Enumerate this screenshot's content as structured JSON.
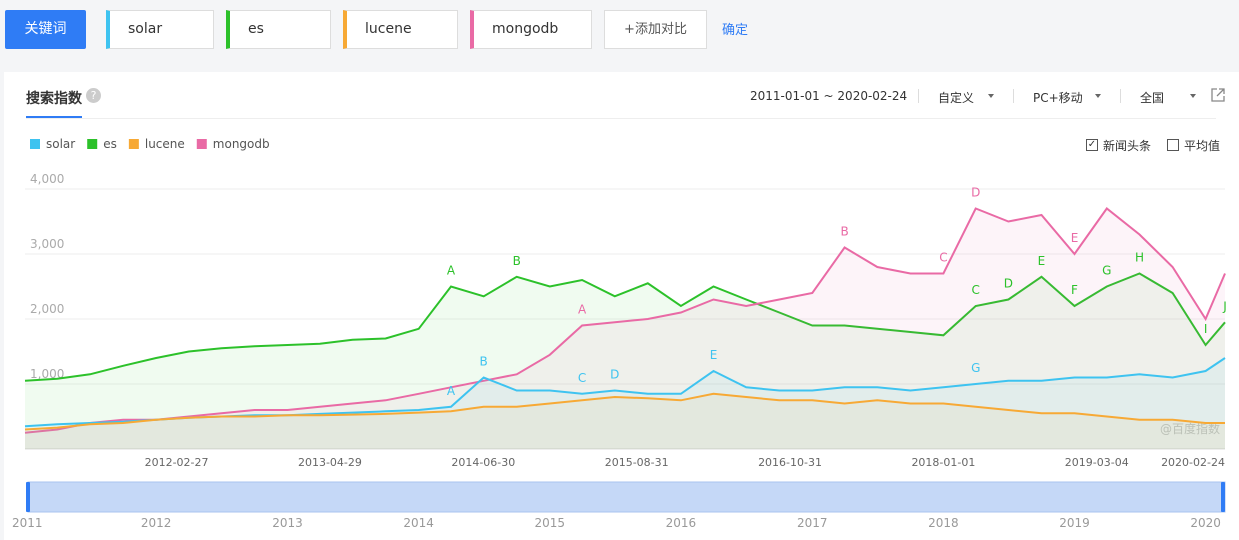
{
  "keywords_bar": {
    "button": "关键词",
    "keywords": [
      {
        "text": "solar",
        "color": "#3ec3f0"
      },
      {
        "text": "es",
        "color": "#2cc12a"
      },
      {
        "text": "lucene",
        "color": "#f7a935"
      },
      {
        "text": "mongodb",
        "color": "#e96aa5"
      }
    ],
    "add": "+添加对比",
    "confirm": "确定"
  },
  "panel": {
    "tab": "搜索指数",
    "help": "?",
    "date_range": "2011-01-01 ~ 2020-02-24",
    "dropdowns": [
      "自定义",
      "PC+移动",
      "全国"
    ],
    "checkboxes": [
      {
        "label": "新闻头条",
        "checked": true
      },
      {
        "label": "平均值",
        "checked": false
      }
    ],
    "watermark": "@百度指数"
  },
  "chart_data": {
    "type": "line",
    "area": true,
    "grid": true,
    "x": [
      "2011-01-01",
      "2011-04-01",
      "2011-07-01",
      "2011-10-01",
      "2012-01-01",
      "2012-04-01",
      "2012-07-01",
      "2012-10-01",
      "2013-01-01",
      "2013-04-01",
      "2013-07-01",
      "2013-10-01",
      "2014-01-01",
      "2014-04-01",
      "2014-07-01",
      "2014-10-01",
      "2015-01-01",
      "2015-04-01",
      "2015-07-01",
      "2015-10-01",
      "2016-01-01",
      "2016-04-01",
      "2016-07-01",
      "2016-10-01",
      "2017-01-01",
      "2017-04-01",
      "2017-07-01",
      "2017-10-01",
      "2018-01-01",
      "2018-04-01",
      "2018-07-01",
      "2018-10-01",
      "2019-01-01",
      "2019-04-01",
      "2019-07-01",
      "2019-10-01",
      "2020-01-01",
      "2020-02-24"
    ],
    "xlim": [
      "2011-01-01",
      "2020-02-24"
    ],
    "xticks": [
      "2012-02-27",
      "2013-04-29",
      "2014-06-30",
      "2015-08-31",
      "2016-10-31",
      "2018-01-01",
      "2019-03-04",
      "2020-02-24"
    ],
    "ylim": [
      0,
      4200
    ],
    "yticks": [
      {
        "value": 1000,
        "label": "1,000"
      },
      {
        "value": 2000,
        "label": "2,000"
      },
      {
        "value": 3000,
        "label": "3,000"
      },
      {
        "value": 4000,
        "label": "4,000"
      }
    ],
    "series": [
      {
        "name": "solar",
        "color": "#3ec3f0",
        "values": [
          350,
          380,
          400,
          420,
          450,
          480,
          500,
          520,
          520,
          540,
          560,
          580,
          600,
          650,
          1100,
          900,
          900,
          850,
          900,
          850,
          850,
          1200,
          950,
          900,
          900,
          950,
          950,
          900,
          950,
          1000,
          1050,
          1050,
          1100,
          1100,
          1150,
          1100,
          1200,
          1400
        ]
      },
      {
        "name": "es",
        "color": "#2cc12a",
        "values": [
          1050,
          1080,
          1150,
          1280,
          1400,
          1500,
          1550,
          1580,
          1600,
          1620,
          1680,
          1700,
          1850,
          2500,
          2350,
          2650,
          2500,
          2600,
          2350,
          2550,
          2200,
          2500,
          2300,
          2100,
          1900,
          1900,
          1850,
          1800,
          1750,
          2200,
          2300,
          2650,
          2200,
          2500,
          2700,
          2400,
          1600,
          1950
        ]
      },
      {
        "name": "lucene",
        "color": "#f7a935",
        "values": [
          300,
          330,
          380,
          400,
          450,
          480,
          500,
          500,
          520,
          520,
          530,
          540,
          560,
          580,
          650,
          650,
          700,
          750,
          800,
          780,
          750,
          850,
          800,
          750,
          750,
          700,
          750,
          700,
          700,
          650,
          600,
          550,
          550,
          500,
          450,
          450,
          400,
          400
        ]
      },
      {
        "name": "mongodb",
        "color": "#e96aa5",
        "values": [
          250,
          300,
          400,
          450,
          450,
          500,
          550,
          600,
          600,
          650,
          700,
          750,
          850,
          950,
          1050,
          1150,
          1450,
          1900,
          1950,
          2000,
          2100,
          2300,
          2200,
          2300,
          2400,
          3100,
          2800,
          2700,
          2700,
          3700,
          3500,
          3600,
          3000,
          3700,
          3300,
          2800,
          2000,
          2700
        ]
      }
    ],
    "annotations": [
      {
        "text": "A",
        "series": 1,
        "x": "2014-04-01"
      },
      {
        "text": "B",
        "series": 1,
        "x": "2014-10-01"
      },
      {
        "text": "C",
        "series": 1,
        "x": "2018-04-01"
      },
      {
        "text": "D",
        "series": 1,
        "x": "2018-07-01"
      },
      {
        "text": "E",
        "series": 1,
        "x": "2018-10-01"
      },
      {
        "text": "F",
        "series": 1,
        "x": "2019-01-01"
      },
      {
        "text": "G",
        "series": 1,
        "x": "2019-04-01"
      },
      {
        "text": "H",
        "series": 1,
        "x": "2019-07-01"
      },
      {
        "text": "I",
        "series": 1,
        "x": "2020-01-01"
      },
      {
        "text": "J",
        "series": 1,
        "x": "2020-02-24"
      },
      {
        "text": "A",
        "series": 3,
        "x": "2015-04-01"
      },
      {
        "text": "B",
        "series": 3,
        "x": "2017-04-01"
      },
      {
        "text": "C",
        "series": 3,
        "x": "2018-01-01"
      },
      {
        "text": "D",
        "series": 3,
        "x": "2018-04-01"
      },
      {
        "text": "E",
        "series": 3,
        "x": "2019-01-01"
      },
      {
        "text": "A",
        "series": 0,
        "x": "2014-04-01"
      },
      {
        "text": "B",
        "series": 0,
        "x": "2014-07-01"
      },
      {
        "text": "C",
        "series": 0,
        "x": "2015-04-01"
      },
      {
        "text": "D",
        "series": 0,
        "x": "2015-07-01"
      },
      {
        "text": "E",
        "series": 0,
        "x": "2016-04-01"
      },
      {
        "text": "G",
        "series": 0,
        "x": "2018-04-01"
      }
    ],
    "navigator": {
      "years": [
        "2011",
        "2012",
        "2013",
        "2014",
        "2015",
        "2016",
        "2017",
        "2018",
        "2019",
        "2020"
      ]
    }
  }
}
